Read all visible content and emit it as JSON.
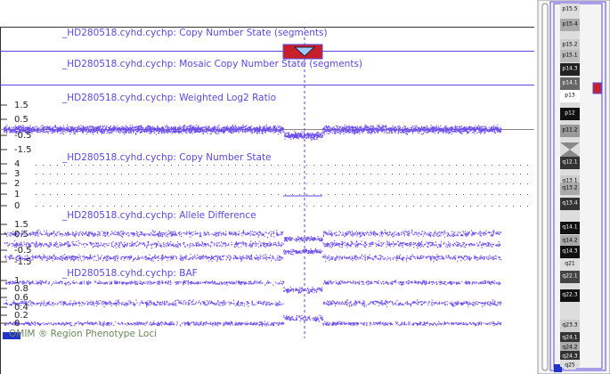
{
  "tracks": [
    {
      "title": "_HD280518.cyhd.cychp: Copy Number State (segments)"
    },
    {
      "title": "_HD280518.cyhd.cychp: Mosaic Copy Number State (segments)"
    },
    {
      "title": "_HD280518.cyhd.cychp: Weighted Log2 Ratio",
      "axis": [
        "1.5",
        "0.5",
        "-0.5",
        "-1.5"
      ]
    },
    {
      "title": "_HD280518.cyhd.cychp: Copy Number State",
      "axis": [
        "4",
        "3",
        "2",
        "1",
        "0"
      ]
    },
    {
      "title": "_HD280518.cyhd.cychp: Allele Difference",
      "axis": [
        "1.5",
        "0.5",
        "-0.5",
        "-1.5"
      ]
    },
    {
      "title": "_HD280518.cyhd.cychp: BAF",
      "axis": [
        "1",
        "0.8",
        "0.6",
        "0.4",
        "0.2",
        "0"
      ]
    }
  ],
  "omim": "OMIM ® Region Phenotype Loci",
  "bands": [
    "p15.5",
    "p15.4",
    "p15.2",
    "p15.1",
    "p14.3",
    "p14.1",
    "p13",
    "p12",
    "p11.2",
    "q12.1",
    "q13.1",
    "q13.2",
    "q13.4",
    "q14.1",
    "q14.2",
    "q14.3",
    "q21",
    "q22.1",
    "q22.3",
    "q23.3",
    "q24.1",
    "q24.2",
    "q24.3",
    "q25"
  ]
}
